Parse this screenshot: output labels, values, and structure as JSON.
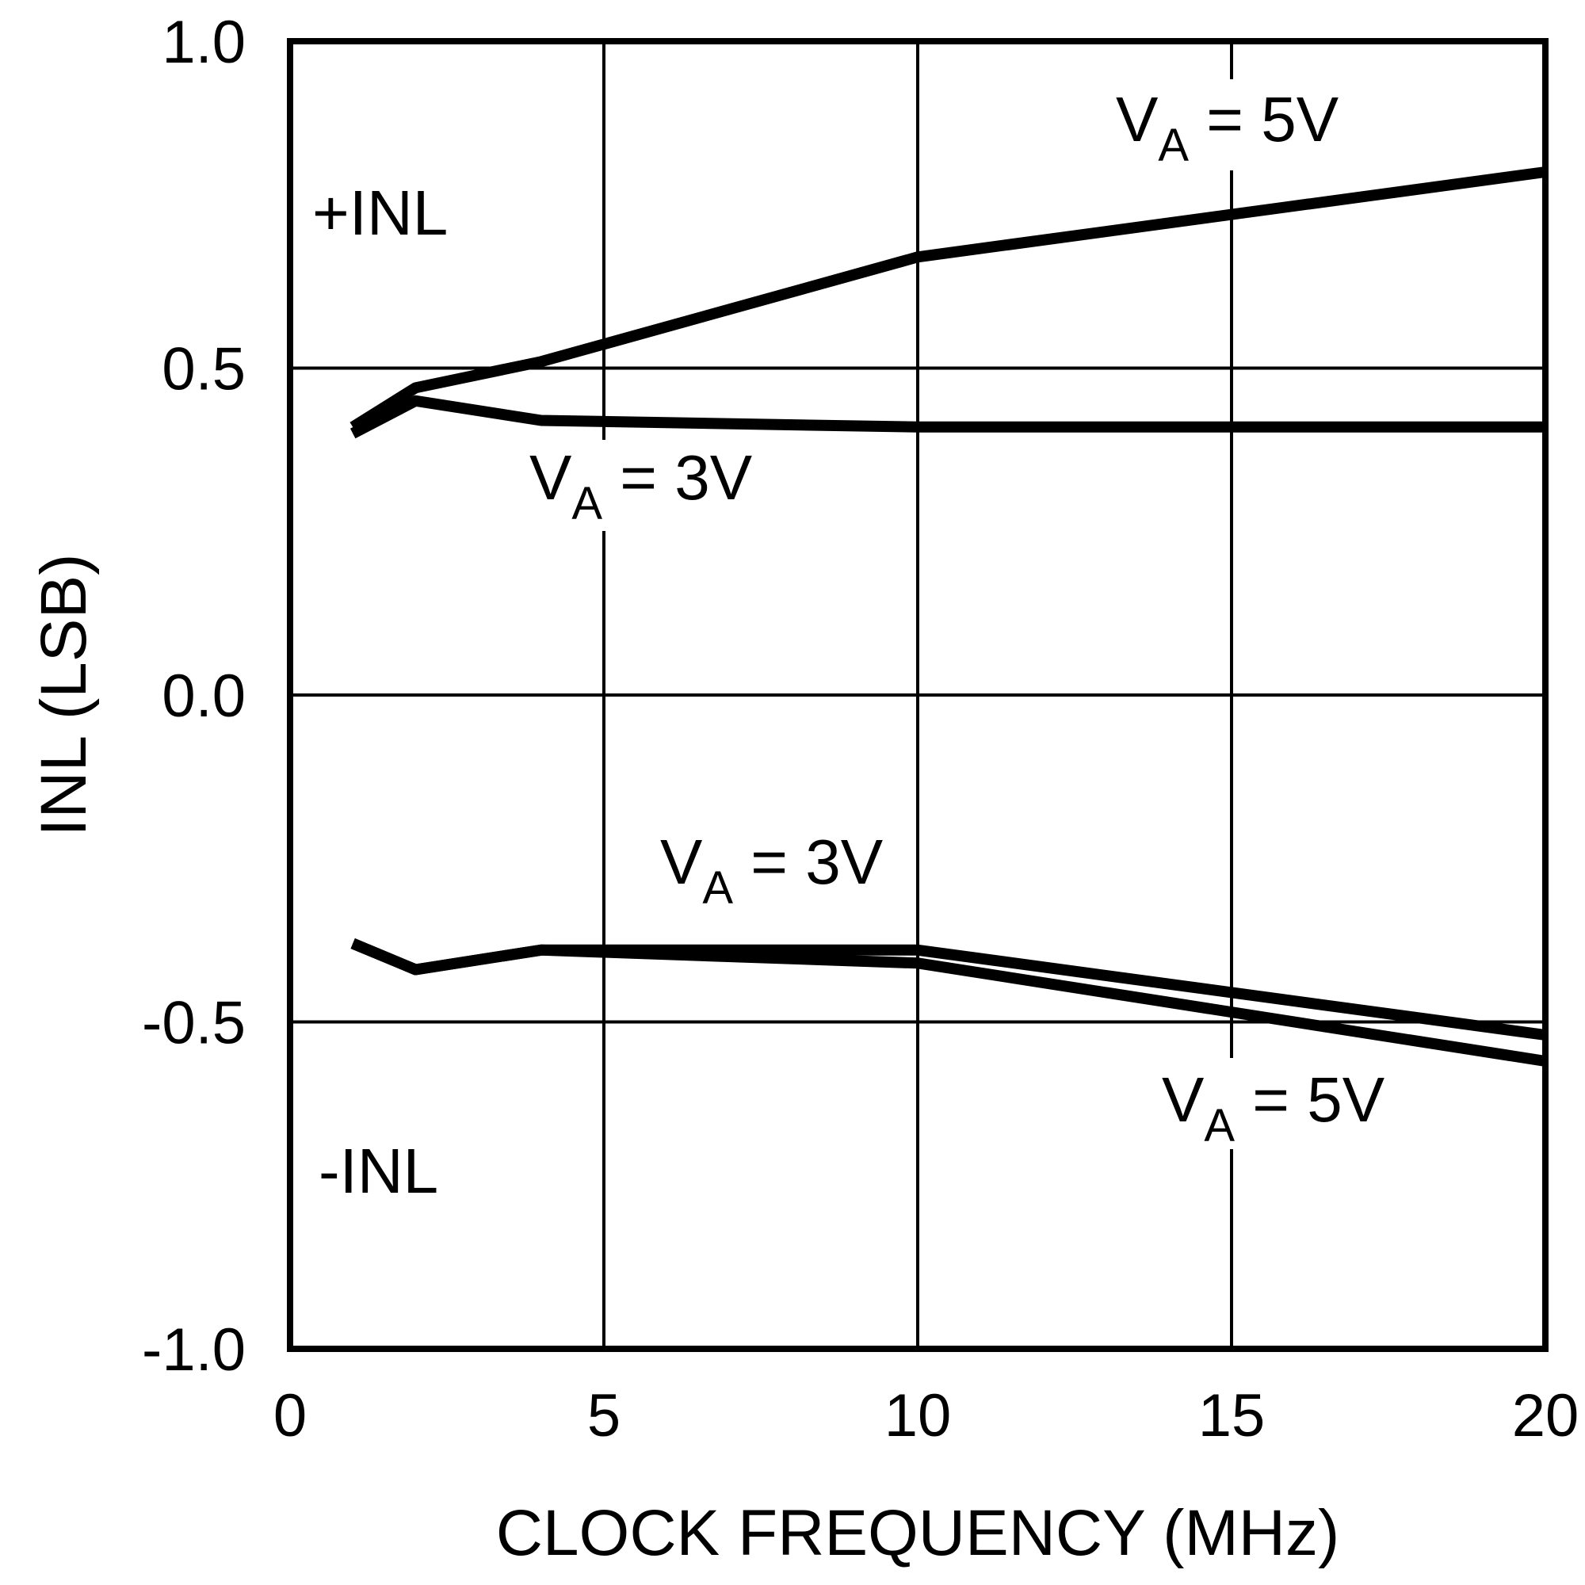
{
  "chart_data": {
    "type": "line",
    "xlabel": "CLOCK FREQUENCY (MHz)",
    "ylabel": "INL (LSB)",
    "xlim": [
      0,
      20
    ],
    "ylim": [
      -1.0,
      1.0
    ],
    "x_ticks": [
      0,
      5,
      10,
      15,
      20
    ],
    "x_tick_labels": [
      "0",
      "5",
      "10",
      "15",
      "20"
    ],
    "y_ticks": [
      1.0,
      0.5,
      0.0,
      -0.5,
      -1.0
    ],
    "y_tick_labels": [
      "1.0",
      "0.5",
      "0.0",
      "-0.5",
      "-1.0"
    ],
    "grid": true,
    "series": [
      {
        "x": [
          1,
          2,
          4,
          10,
          20
        ],
        "y": [
          0.41,
          0.47,
          0.51,
          0.67,
          0.8
        ]
      },
      {
        "x": [
          1,
          2,
          4,
          10,
          20
        ],
        "y": [
          0.4,
          0.45,
          0.42,
          0.41,
          0.41
        ]
      },
      {
        "x": [
          1,
          2,
          4,
          10,
          20
        ],
        "y": [
          -0.38,
          -0.42,
          -0.39,
          -0.39,
          -0.52
        ]
      },
      {
        "x": [
          1,
          2,
          4,
          10,
          20
        ],
        "y": [
          -0.38,
          -0.42,
          -0.39,
          -0.41,
          -0.56
        ]
      }
    ],
    "annotations": [
      {
        "id": "pos-inl",
        "text": "+INL"
      },
      {
        "id": "neg-inl",
        "text": "-INL"
      },
      {
        "id": "va5-top",
        "main": "V",
        "sub": "A",
        "rest": " = 5V"
      },
      {
        "id": "va3-top",
        "main": "V",
        "sub": "A",
        "rest": " = 3V"
      },
      {
        "id": "va3-bottom",
        "main": "V",
        "sub": "A",
        "rest": " = 3V"
      },
      {
        "id": "va5-bottom",
        "main": "V",
        "sub": "A",
        "rest": " = 5V"
      }
    ]
  }
}
